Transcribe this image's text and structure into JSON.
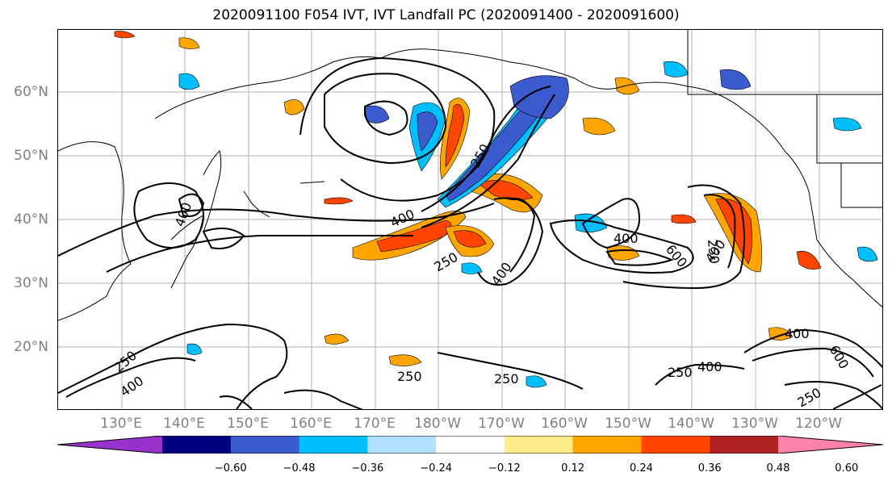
{
  "title": "2020091100 F054 IVT, IVT Landfall PC (2020091400 - 2020091600)",
  "lat_labels": [
    "60°N",
    "50°N",
    "40°N",
    "30°N",
    "20°N"
  ],
  "lon_labels": [
    "130°E",
    "140°E",
    "150°E",
    "160°E",
    "170°E",
    "180°W",
    "170°W",
    "160°W",
    "150°W",
    "140°W",
    "130°W",
    "120°W"
  ],
  "colorbar": {
    "colors": [
      "#9932cc",
      "#000080",
      "#3a5acd",
      "#00bfff",
      "#b0e2ff",
      "#ffffff",
      "#ffec8b",
      "#ffa500",
      "#ff4500",
      "#b22222",
      "#ff82ab"
    ],
    "ticks": [
      "−0.60",
      "−0.48",
      "−0.36",
      "−0.24",
      "−0.12",
      "0.12",
      "0.24",
      "0.36",
      "0.48",
      "0.60"
    ]
  },
  "contour_labels": [
    "250",
    "400",
    "400",
    "400",
    "250",
    "400",
    "400",
    "600",
    "250",
    "400",
    "250",
    "250",
    "250",
    "250",
    "400",
    "600",
    "250",
    "400"
  ],
  "chart_data": {
    "type": "heatmap",
    "title": "2020091100 F054 IVT, IVT Landfall PC (2020091400 - 2020091600)",
    "contour_levels": [
      250,
      400,
      600
    ],
    "fill_levels": [
      -0.6,
      -0.48,
      -0.36,
      -0.24,
      -0.12,
      0.12,
      0.24,
      0.36,
      0.48,
      0.6
    ],
    "lat_ticks": [
      "60°N",
      "50°N",
      "40°N",
      "30°N",
      "20°N"
    ],
    "lon_ticks": [
      "130°E",
      "140°E",
      "150°E",
      "160°E",
      "170°E",
      "180°W",
      "170°W",
      "160°W",
      "150°W",
      "140°W",
      "130°W",
      "120°W"
    ]
  }
}
